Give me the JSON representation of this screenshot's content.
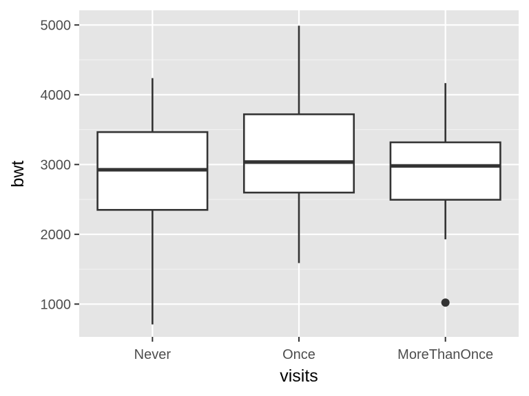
{
  "chart_data": {
    "type": "boxplot",
    "title": "",
    "xlabel": "visits",
    "ylabel": "bwt",
    "categories": [
      "Never",
      "Once",
      "MoreThanOnce"
    ],
    "boxes": [
      {
        "category": "Never",
        "whisker_low": 709,
        "q1": 2350,
        "median": 2925,
        "q3": 3465,
        "whisker_high": 4238,
        "outliers": []
      },
      {
        "category": "Once",
        "whisker_low": 1588,
        "q1": 2598,
        "median": 3035,
        "q3": 3720,
        "whisker_high": 4990,
        "outliers": []
      },
      {
        "category": "MoreThanOnce",
        "whisker_low": 1928,
        "q1": 2495,
        "median": 2980,
        "q3": 3318,
        "whisker_high": 4167,
        "outliers": [
          1021
        ]
      }
    ],
    "yticks": [
      1000,
      2000,
      3000,
      4000,
      5000
    ],
    "ylim": [
      530,
      5210
    ],
    "grid": true,
    "legend": "none",
    "colors": {
      "panel_background": "#e5e5e5",
      "grid_major": "#ffffff",
      "grid_minor": "#f2f2f2",
      "box_fill": "#ffffff",
      "box_stroke": "#333333",
      "tick_label": "#4d4d4d",
      "axis_title": "#000000"
    }
  }
}
